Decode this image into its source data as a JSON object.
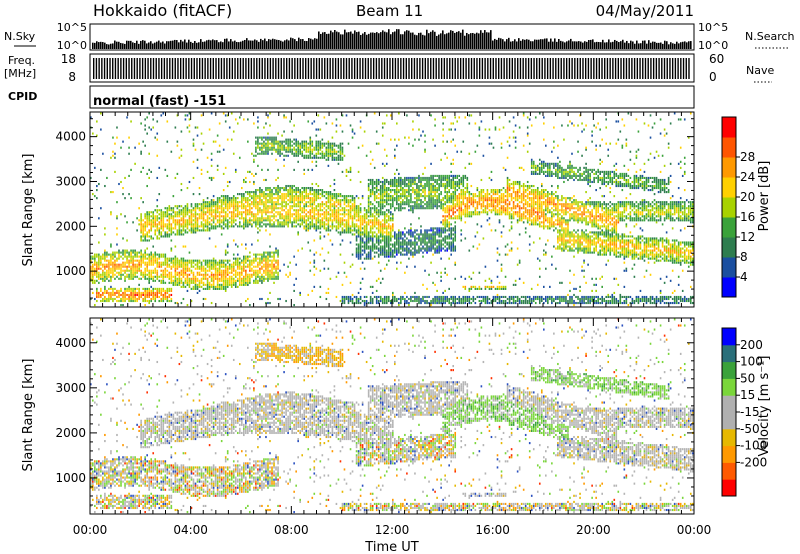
{
  "header": {
    "station": "Hokkaido (fitACF)",
    "beam": "Beam 11",
    "date": "04/May/2011"
  },
  "top_panels": {
    "nsky_label": "N.Sky",
    "nsearch_label": "N.Search",
    "nsky_ticks": [
      "10^5",
      "10^0"
    ],
    "freq_label_1": "Freq.",
    "freq_label_2": "[MHz]",
    "freq_ticks": [
      "18",
      "8"
    ],
    "nave_label": "Nave",
    "nave_ticks": [
      "60",
      "0"
    ],
    "cpid_label": "CPID",
    "cpid_text": "normal (fast) -151"
  },
  "colors": {
    "power": [
      "#0000ff",
      "#1a4fa0",
      "#2e7d4f",
      "#3aa23a",
      "#a8d200",
      "#ffd000",
      "#ff9900",
      "#ff5500",
      "#ff0000"
    ],
    "velocity": [
      "#ff0000",
      "#ff5a00",
      "#ff9900",
      "#e6b800",
      "#b0b0b0",
      "#b0b0b0",
      "#7ad63a",
      "#3aa23a",
      "#2a6f7a",
      "#0000ff"
    ]
  },
  "chart_data": [
    {
      "type": "heatmap",
      "name": "power",
      "ylabel": "Slant Range [km]",
      "xlabel": "",
      "ylim": [
        200,
        4550
      ],
      "xlim": [
        0,
        24
      ],
      "yticks": [
        "1000",
        "2000",
        "3000",
        "4000"
      ],
      "colorbar": {
        "label": "Power [dB]",
        "ticks": [
          "4",
          "8",
          "12",
          "16",
          "20",
          "24",
          "28"
        ]
      }
    },
    {
      "type": "heatmap",
      "name": "velocity",
      "ylabel": "Slant Range [km]",
      "xlabel": "Time UT",
      "ylim": [
        200,
        4550
      ],
      "xlim": [
        0,
        24
      ],
      "yticks": [
        "1000",
        "2000",
        "3000",
        "4000"
      ],
      "xticks": [
        "00:00",
        "04:00",
        "08:00",
        "12:00",
        "16:00",
        "20:00",
        "00:00"
      ],
      "colorbar": {
        "label": "Velocity [m s⁻¹]",
        "ticks": [
          "200",
          "100",
          "50",
          "15",
          "-15",
          "-50",
          "-100",
          "-200"
        ]
      }
    }
  ]
}
